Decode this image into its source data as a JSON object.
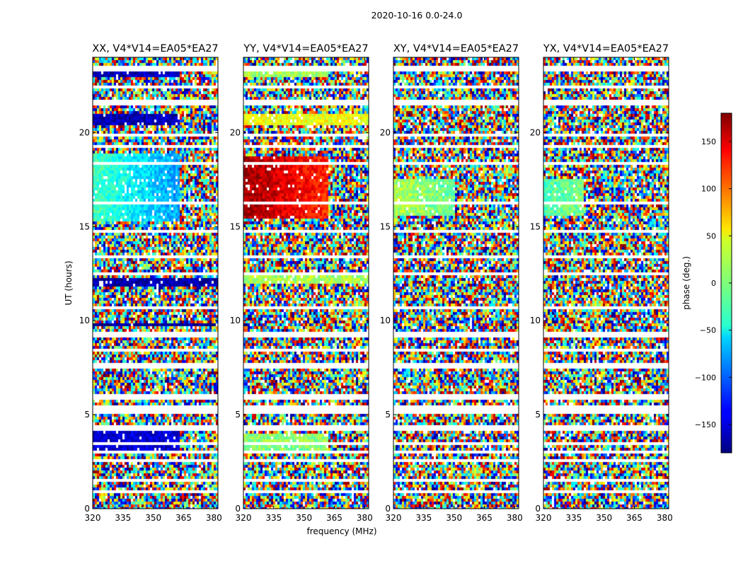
{
  "chart_data": {
    "type": "heatmap",
    "suptitle": "2020-10-16 0.0-24.0",
    "xlabel": "frequency (MHz)",
    "ylabel": "UT (hours)",
    "xlim": [
      320,
      382
    ],
    "ylim": [
      0,
      24
    ],
    "xticks": [
      320,
      335,
      350,
      365,
      380
    ],
    "yticks": [
      0,
      5,
      10,
      15,
      20
    ],
    "colorbar": {
      "label": "phase (deg.)",
      "range": [
        -180,
        180
      ],
      "ticks": [
        150,
        100,
        50,
        0,
        -50,
        -100,
        -150
      ],
      "tick_labels": [
        "150",
        "100",
        "50",
        "0",
        "−50",
        "−100",
        "−150"
      ],
      "colormap": "jet"
    },
    "panels": [
      {
        "title": "XX, V4*V14=EA05*EA27",
        "coherent": [
          {
            "t0": 15.3,
            "t1": 18.9,
            "f1": 363,
            "phase": -20,
            "phase_end": -80
          },
          {
            "t0": 20.4,
            "t1": 21.0,
            "f1": 363,
            "phase": -160,
            "phase_end": -160
          },
          {
            "t0": 23.0,
            "t1": 23.6,
            "f1": 363,
            "phase": -160,
            "phase_end": -160
          },
          {
            "t0": 11.8,
            "t1": 12.3,
            "f1": 382,
            "phase": -165,
            "phase_end": -165
          },
          {
            "t0": 9.7,
            "t1": 9.9,
            "f1": 382,
            "phase": -170,
            "phase_end": -170
          },
          {
            "t0": 3.1,
            "t1": 4.2,
            "f1": 363,
            "phase": -150,
            "phase_end": -150
          }
        ]
      },
      {
        "title": "YY, V4*V14=EA05*EA27",
        "coherent": [
          {
            "t0": 15.4,
            "t1": 18.8,
            "f1": 362,
            "phase": 170,
            "phase_end": 120
          },
          {
            "t0": 20.4,
            "t1": 21.0,
            "f1": 382,
            "phase": 40,
            "phase_end": 40
          },
          {
            "t0": 23.0,
            "t1": 23.6,
            "f1": 362,
            "phase": 10,
            "phase_end": 10
          },
          {
            "t0": 12.0,
            "t1": 12.4,
            "f1": 382,
            "phase": 15,
            "phase_end": 15
          },
          {
            "t0": 3.0,
            "t1": 4.0,
            "f1": 362,
            "phase": 5,
            "phase_end": 5
          }
        ]
      },
      {
        "title": "XY, V4*V14=EA05*EA27",
        "coherent": [
          {
            "t0": 15.6,
            "t1": 17.5,
            "f1": 350,
            "phase": 20,
            "phase_end": -10
          }
        ]
      },
      {
        "title": "YX, V4*V14=EA05*EA27",
        "coherent": [
          {
            "t0": 15.6,
            "t1": 17.5,
            "f1": 340,
            "phase": -20,
            "phase_end": 0
          }
        ]
      }
    ],
    "blank_rows_hours": [
      0.9,
      1.5,
      2.55,
      3.0,
      3.5,
      4.3,
      5.2,
      5.4,
      5.95,
      7.6,
      8.4,
      9.25,
      10.7,
      12.5,
      13.4,
      14.8,
      16.2,
      18.3,
      19.3,
      19.9,
      21.6,
      22.4,
      23.4
    ]
  }
}
